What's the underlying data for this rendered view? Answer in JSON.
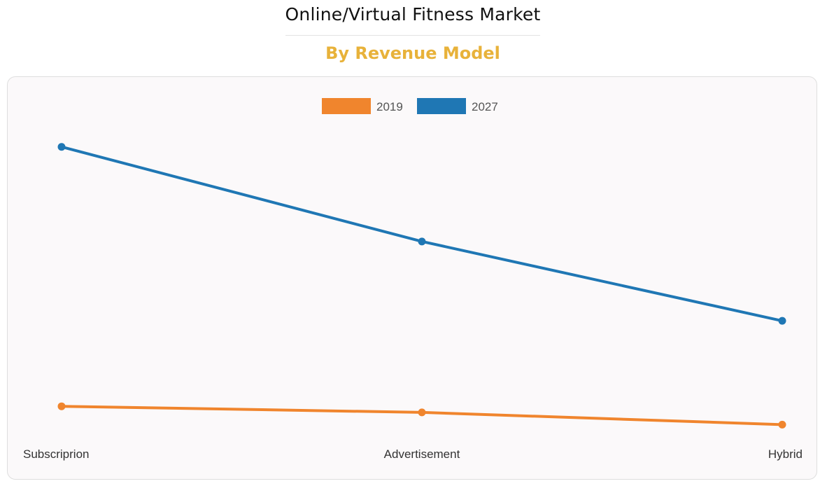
{
  "header": {
    "title": "Online/Virtual Fitness Market",
    "subtitle": "By Revenue Model"
  },
  "colors": {
    "series_2019": "#f0852d",
    "series_2027": "#1f77b4",
    "subtitle": "#e8b23a"
  },
  "chart_data": {
    "type": "line",
    "categories": [
      "Subscriprion",
      "Advertisement",
      "Hybrid"
    ],
    "series": [
      {
        "name": "2019",
        "values": [
          9.5,
          8.5,
          6.5
        ]
      },
      {
        "name": "2027",
        "values": [
          52,
          36.5,
          23.5
        ]
      }
    ],
    "ylim": [
      0,
      60
    ],
    "legend_position": "top-center",
    "grid": false,
    "xlabel": "",
    "ylabel": ""
  }
}
